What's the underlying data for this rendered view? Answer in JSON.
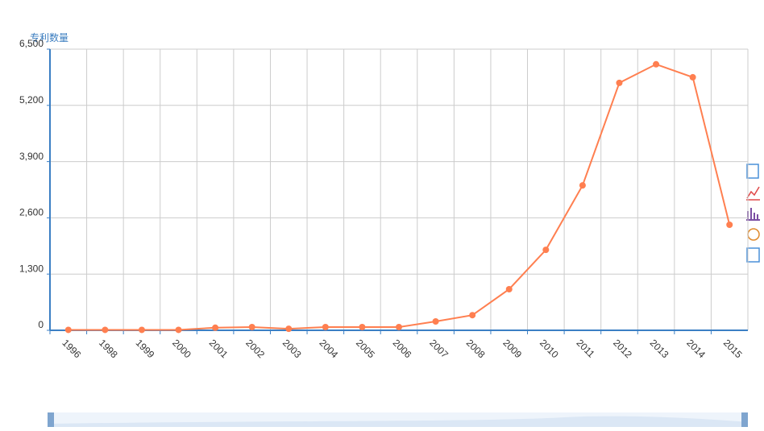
{
  "chart_data": {
    "type": "line",
    "y_label": "专利数量",
    "categories": [
      "1996",
      "1998",
      "1999",
      "2000",
      "2001",
      "2002",
      "2003",
      "2004",
      "2005",
      "2006",
      "2007",
      "2008",
      "2009",
      "2010",
      "2011",
      "2012",
      "2013",
      "2014",
      "2015"
    ],
    "series": [
      {
        "color": "#ff7f50",
        "values": [
          10,
          10,
          10,
          10,
          60,
          75,
          35,
          75,
          75,
          75,
          205,
          350,
          950,
          1860,
          3350,
          5720,
          6150,
          5850,
          2440
        ]
      }
    ],
    "ylim": [
      0,
      6500
    ],
    "yticks": [
      0,
      {
        "value": 1300,
        "label": "1,300"
      },
      {
        "value": 2600,
        "label": "2,600"
      },
      {
        "value": 3900,
        "label": "3,900"
      },
      {
        "value": 5200,
        "label": "5,200"
      },
      {
        "value": 6500,
        "label": "6,500"
      }
    ],
    "grid": true
  }
}
